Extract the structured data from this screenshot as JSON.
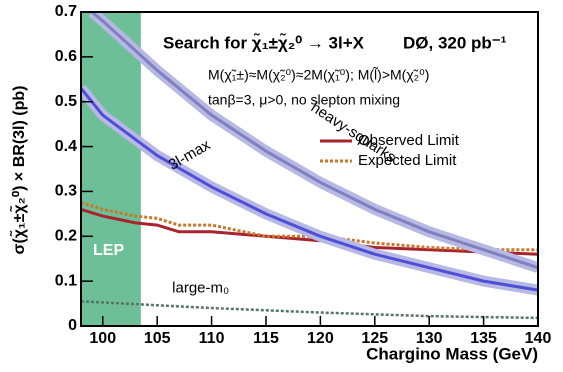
{
  "chart_data": {
    "type": "line",
    "title": "Search for χ̃₁±χ̃₂⁰ → 3l+X",
    "subtitle": "DØ, 320 pb⁻¹",
    "annotations": [
      "M(χ̃₁±)≈M(χ̃₂⁰)≈2M(χ̃₁⁰); M(l̃)>M(χ̃₂⁰)",
      "tanβ=3, μ>0, no slepton mixing",
      "LEP"
    ],
    "x_label": "Chargino Mass (GeV)",
    "y_label": "σ(χ̃₁±χ̃₂⁰) × BR(3l) (pb)",
    "xlim": [
      98,
      140
    ],
    "ylim": [
      0,
      0.7
    ],
    "xticks": [
      100,
      105,
      110,
      115,
      120,
      125,
      130,
      135,
      140
    ],
    "yticks": [
      0,
      0.1,
      0.2,
      0.3,
      0.4,
      0.5,
      0.6,
      0.7
    ],
    "lep_region": [
      98,
      103.5
    ],
    "lep_color": "#6dbf98",
    "legend": "upper right",
    "series": [
      {
        "name": "Observed Limit",
        "color": "#a8232e",
        "style": "solid",
        "legend": true,
        "x": [
          98,
          100,
          103,
          105,
          107,
          110,
          115,
          120,
          125,
          130,
          135,
          140
        ],
        "values": [
          0.26,
          0.245,
          0.23,
          0.225,
          0.21,
          0.21,
          0.2,
          0.19,
          0.175,
          0.17,
          0.165,
          0.16
        ]
      },
      {
        "name": "Expected Limit",
        "color": "#c8782a",
        "style": "dotted",
        "legend": true,
        "x": [
          98,
          100,
          103,
          105,
          107,
          110,
          115,
          120,
          125,
          130,
          135,
          140
        ],
        "values": [
          0.275,
          0.26,
          0.245,
          0.24,
          0.225,
          0.225,
          0.2,
          0.2,
          0.185,
          0.175,
          0.17,
          0.17
        ]
      },
      {
        "name": "3l-max",
        "color": "#4c4fd8",
        "style": "band",
        "legend": false,
        "x": [
          98,
          100,
          105,
          110,
          115,
          120,
          125,
          130,
          135,
          140
        ],
        "values": [
          0.53,
          0.47,
          0.38,
          0.31,
          0.25,
          0.2,
          0.16,
          0.13,
          0.1,
          0.08
        ]
      },
      {
        "name": "heavy-squarks",
        "color": "#8080c0",
        "style": "band",
        "legend": false,
        "x": [
          99,
          100,
          105,
          110,
          115,
          120,
          125,
          130,
          135,
          140
        ],
        "values": [
          0.7,
          0.68,
          0.57,
          0.47,
          0.39,
          0.32,
          0.26,
          0.21,
          0.17,
          0.13
        ]
      },
      {
        "name": "large-m₀",
        "color": "#557766",
        "style": "dotted",
        "legend": false,
        "x": [
          98,
          110,
          120,
          130,
          140
        ],
        "values": [
          0.055,
          0.04,
          0.03,
          0.022,
          0.018
        ]
      }
    ]
  }
}
